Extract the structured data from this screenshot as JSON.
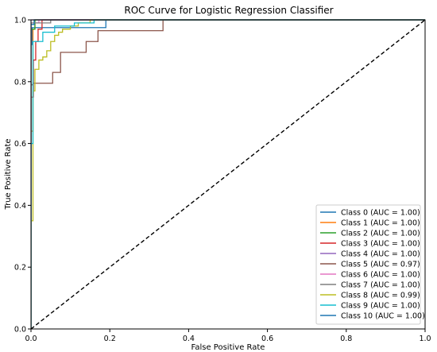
{
  "chart_data": {
    "type": "line",
    "title": "ROC Curve for Logistic Regression Classifier",
    "xlabel": "False Positive Rate",
    "ylabel": "True Positive Rate",
    "xlim": [
      0.0,
      1.0
    ],
    "ylim": [
      0.0,
      1.0
    ],
    "xticks": [
      "0.0",
      "0.2",
      "0.4",
      "0.6",
      "0.8",
      "1.0"
    ],
    "yticks": [
      "0.0",
      "0.2",
      "0.4",
      "0.6",
      "0.8",
      "1.0"
    ],
    "grid": false,
    "legend_position": "lower-right",
    "reference_line": {
      "x": [
        0,
        1
      ],
      "y": [
        0,
        1
      ],
      "color": "#000000",
      "style": "dashed"
    },
    "series": [
      {
        "name": "Class 0 (AUC = 1.00)",
        "color": "#1f77b4",
        "x": [
          0,
          0,
          0.003,
          0.003,
          0.19,
          0.19,
          1.0
        ],
        "y": [
          0,
          0.92,
          0.92,
          0.975,
          0.975,
          1.0,
          1.0
        ]
      },
      {
        "name": "Class 1 (AUC = 1.00)",
        "color": "#ff7f0e",
        "x": [
          0,
          0,
          0.005,
          0.005,
          0.01,
          0.01,
          1.0
        ],
        "y": [
          0,
          0.64,
          0.64,
          0.97,
          0.97,
          1.0,
          1.0
        ]
      },
      {
        "name": "Class 2 (AUC = 1.00)",
        "color": "#2ca02c",
        "x": [
          0,
          0,
          0.01,
          0.01,
          1.0
        ],
        "y": [
          0,
          0.97,
          0.97,
          1.0,
          1.0
        ]
      },
      {
        "name": "Class 3 (AUC = 1.00)",
        "color": "#d62728",
        "x": [
          0,
          0,
          0.006,
          0.006,
          0.012,
          0.012,
          0.018,
          0.018,
          0.028,
          0.028,
          1.0
        ],
        "y": [
          0,
          0.75,
          0.75,
          0.87,
          0.87,
          0.93,
          0.93,
          0.97,
          0.97,
          1.0,
          1.0
        ]
      },
      {
        "name": "Class 4 (AUC = 1.00)",
        "color": "#9467bd",
        "x": [
          0,
          0,
          1.0
        ],
        "y": [
          0,
          1.0,
          1.0
        ]
      },
      {
        "name": "Class 5 (AUC = 0.97)",
        "color": "#8c564b",
        "x": [
          0,
          0,
          0.005,
          0.005,
          0.055,
          0.055,
          0.075,
          0.075,
          0.14,
          0.14,
          0.17,
          0.17,
          0.335,
          0.335,
          1.0
        ],
        "y": [
          0,
          0.79,
          0.79,
          0.795,
          0.795,
          0.83,
          0.83,
          0.895,
          0.895,
          0.93,
          0.93,
          0.965,
          0.965,
          1.0,
          1.0
        ]
      },
      {
        "name": "Class 6 (AUC = 1.00)",
        "color": "#e377c2",
        "x": [
          0,
          0,
          0.02,
          0.02,
          1.0
        ],
        "y": [
          0,
          0.99,
          0.99,
          1.0,
          1.0
        ]
      },
      {
        "name": "Class 7 (AUC = 1.00)",
        "color": "#7f7f7f",
        "x": [
          0,
          0,
          0.05,
          0.05,
          1.0
        ],
        "y": [
          0,
          0.99,
          0.99,
          1.0,
          1.0
        ]
      },
      {
        "name": "Class 8 (AUC = 0.99)",
        "color": "#bcbd22",
        "x": [
          0,
          0,
          0.005,
          0.005,
          0.01,
          0.01,
          0.02,
          0.02,
          0.03,
          0.03,
          0.04,
          0.04,
          0.05,
          0.05,
          0.06,
          0.06,
          0.07,
          0.07,
          0.08,
          0.08,
          0.1,
          0.1,
          0.12,
          0.12,
          0.15,
          0.15,
          1.0
        ],
        "y": [
          0,
          0.35,
          0.35,
          0.77,
          0.77,
          0.84,
          0.84,
          0.87,
          0.87,
          0.88,
          0.88,
          0.9,
          0.9,
          0.93,
          0.93,
          0.95,
          0.95,
          0.96,
          0.96,
          0.97,
          0.97,
          0.98,
          0.98,
          0.99,
          0.99,
          1.0,
          1.0
        ]
      },
      {
        "name": "Class 9 (AUC = 1.00)",
        "color": "#17becf",
        "x": [
          0,
          0,
          0.005,
          0.005,
          0.03,
          0.03,
          0.06,
          0.06,
          0.11,
          0.11,
          0.16,
          0.16,
          1.0
        ],
        "y": [
          0,
          0.6,
          0.6,
          0.93,
          0.93,
          0.96,
          0.96,
          0.98,
          0.98,
          0.99,
          0.99,
          1.0,
          1.0
        ]
      },
      {
        "name": "Class 10 (AUC = 1.00)",
        "color": "#1f77b4",
        "x": [
          0,
          0,
          0.008,
          0.008,
          1.0
        ],
        "y": [
          0,
          0.985,
          0.985,
          1.0,
          1.0
        ]
      }
    ]
  }
}
